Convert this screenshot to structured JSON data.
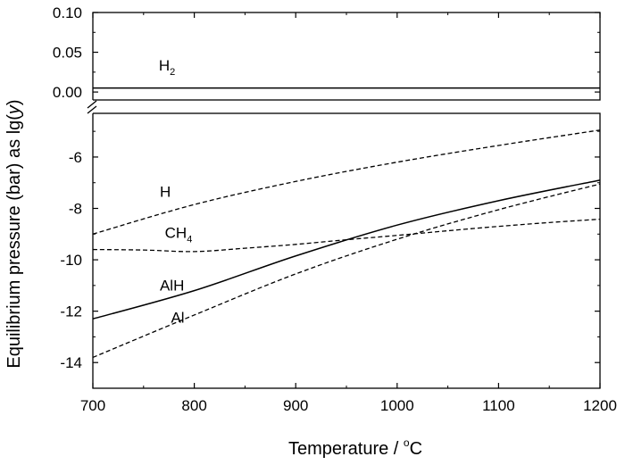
{
  "chart_data": {
    "type": "line",
    "xlabel": {
      "main": "Temperature / ",
      "sup": "o",
      "unit": "C"
    },
    "ylabel": {
      "main": "Equilibrium pressure (bar) as lg(",
      "italic": "y",
      "close": ")"
    },
    "x_range": [
      700,
      1200
    ],
    "x_ticks": [
      700,
      800,
      900,
      1000,
      1100,
      1200
    ],
    "x_tick_labels": [
      "700",
      "800",
      "900",
      "1000",
      "1100",
      "1200"
    ],
    "y_axis_break": true,
    "upper_panel": {
      "y_range": [
        -0.01,
        0.1
      ],
      "y_ticks": [
        0.0,
        0.05,
        0.1
      ],
      "y_tick_labels": [
        "0.00",
        "0.05",
        "0.10"
      ]
    },
    "lower_panel": {
      "y_range": [
        -15,
        -4.3
      ],
      "y_ticks": [
        -14,
        -12,
        -10,
        -8,
        -6
      ],
      "y_tick_labels": [
        "-14",
        "-12",
        "-10",
        "-8",
        "-6"
      ]
    },
    "grid": false,
    "legend": "none",
    "series": [
      {
        "name": "H",
        "sub": "2",
        "panel": "upper",
        "style": "solid",
        "x": [
          700,
          800,
          900,
          1000,
          1100,
          1200
        ],
        "y": [
          0.005,
          0.005,
          0.005,
          0.005,
          0.005,
          0.005
        ],
        "label_at": [
          765,
          0.027
        ]
      },
      {
        "name": "H",
        "sub": "",
        "panel": "lower",
        "style": "dashed",
        "x": [
          700,
          800,
          900,
          1000,
          1100,
          1200
        ],
        "y": [
          -9.0,
          -7.85,
          -6.95,
          -6.2,
          -5.55,
          -4.95
        ],
        "label_at": [
          766,
          -7.55
        ]
      },
      {
        "name": "CH",
        "sub": "4",
        "panel": "lower",
        "style": "dashed",
        "x": [
          700,
          750,
          800,
          850,
          900,
          950,
          1000,
          1050,
          1100,
          1150,
          1200
        ],
        "y": [
          -9.6,
          -9.62,
          -9.68,
          -9.55,
          -9.4,
          -9.22,
          -9.05,
          -8.87,
          -8.7,
          -8.55,
          -8.42
        ],
        "label_at": [
          771,
          -9.15
        ]
      },
      {
        "name": "AlH",
        "sub": "",
        "panel": "lower",
        "style": "solid",
        "x": [
          700,
          800,
          900,
          1000,
          1100,
          1200
        ],
        "y": [
          -12.3,
          -11.2,
          -9.85,
          -8.65,
          -7.7,
          -6.9
        ],
        "label_at": [
          766,
          -11.2
        ]
      },
      {
        "name": "Al",
        "sub": "",
        "panel": "lower",
        "style": "dashed",
        "x": [
          700,
          800,
          900,
          1000,
          1100,
          1200
        ],
        "y": [
          -13.8,
          -12.15,
          -10.55,
          -9.2,
          -8.05,
          -7.05
        ],
        "label_at": [
          777,
          -12.45
        ]
      }
    ]
  }
}
